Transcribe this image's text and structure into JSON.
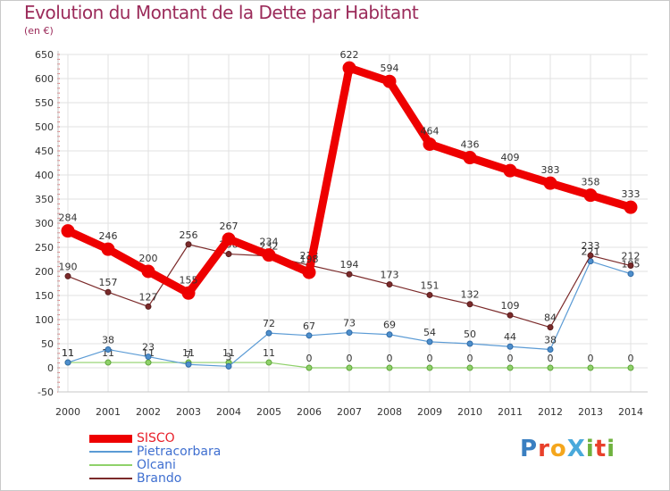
{
  "header": {
    "title": "Evolution du Montant de la Dette par Habitant",
    "unit": "(en €)"
  },
  "logo": {
    "text": "ProXiti",
    "letters": [
      {
        "ch": "P",
        "color": "#3a7fc1"
      },
      {
        "ch": "r",
        "color": "#e8402b"
      },
      {
        "ch": "o",
        "color": "#f4a61d"
      },
      {
        "ch": "X",
        "color": "#49a9db"
      },
      {
        "ch": "i",
        "color": "#6fb23e"
      },
      {
        "ch": "t",
        "color": "#e8402b"
      },
      {
        "ch": "i",
        "color": "#6fb23e"
      }
    ]
  },
  "chart_data": {
    "type": "line",
    "x": [
      "2000",
      "2001",
      "2002",
      "2003",
      "2004",
      "2005",
      "2006",
      "2007",
      "2008",
      "2009",
      "2010",
      "2011",
      "2012",
      "2013",
      "2014"
    ],
    "ylim": [
      -50,
      650
    ],
    "yticks": [
      -50,
      0,
      50,
      100,
      150,
      200,
      250,
      300,
      350,
      400,
      450,
      500,
      550,
      600,
      650
    ],
    "grid": true,
    "legend_position": "bottom-left",
    "series": [
      {
        "name": "SISCO",
        "color": "#ee0000",
        "values": [
          284,
          246,
          200,
          155,
          267,
          234,
          198,
          622,
          594,
          464,
          436,
          409,
          383,
          358,
          333
        ],
        "labels": [
          "284",
          "246",
          "200",
          "155",
          "267",
          "234",
          "198",
          "622",
          "594",
          "464",
          "436",
          "409",
          "383",
          "358",
          "333"
        ]
      },
      {
        "name": "Pietracorbara",
        "color": "#5b9bd5",
        "values": [
          11,
          38,
          23,
          7,
          3,
          72,
          67,
          73,
          69,
          54,
          50,
          44,
          38,
          221,
          195
        ],
        "labels": [
          "11",
          "38",
          "23",
          "7",
          "3",
          "72",
          "67",
          "73",
          "69",
          "54",
          "50",
          "44",
          "38",
          "221",
          "195"
        ]
      },
      {
        "name": "Olcani",
        "color": "#8fd16a",
        "values": [
          11,
          11,
          11,
          11,
          11,
          11,
          0,
          0,
          0,
          0,
          0,
          0,
          0,
          0,
          0
        ],
        "labels": [
          "11",
          "11",
          "11",
          "11",
          "11",
          "11",
          "0",
          "0",
          "0",
          "0",
          "0",
          "0",
          "0",
          "0",
          "0"
        ]
      },
      {
        "name": "Brando",
        "color": "#7b2a2a",
        "values": [
          190,
          157,
          127,
          256,
          236,
          232,
          213,
          194,
          173,
          151,
          132,
          109,
          84,
          233,
          212
        ],
        "labels": [
          "190",
          "157",
          "127",
          "256",
          "236",
          "232",
          "213",
          "194",
          "173",
          "151",
          "132",
          "109",
          "84",
          "233",
          "212"
        ]
      }
    ]
  }
}
